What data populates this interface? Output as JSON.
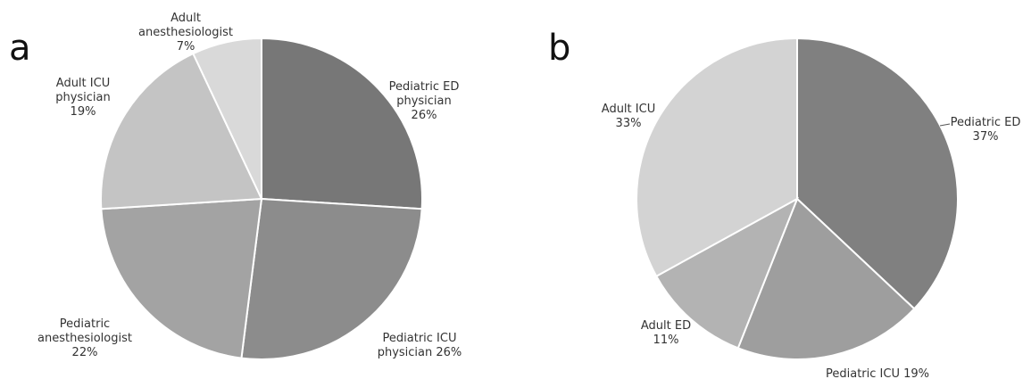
{
  "chart_data": [
    {
      "type": "pie",
      "panel_label": "a",
      "slices": [
        {
          "label_lines": [
            "Pediatric ED",
            "physician",
            "26%"
          ],
          "value": 26,
          "color": "#777777"
        },
        {
          "label_lines": [
            "Pediatric ICU",
            "physician 26%"
          ],
          "value": 26,
          "color": "#8c8c8c"
        },
        {
          "label_lines": [
            "Pediatric",
            "anesthesiologist",
            "22%"
          ],
          "value": 22,
          "color": "#a3a3a3"
        },
        {
          "label_lines": [
            "Adult ICU",
            "physician",
            "19%"
          ],
          "value": 19,
          "color": "#c4c4c4"
        },
        {
          "label_lines": [
            "Adult",
            "anesthesiologist",
            "7%"
          ],
          "value": 7,
          "color": "#d9d9d9"
        }
      ]
    },
    {
      "type": "pie",
      "panel_label": "b",
      "slices": [
        {
          "label_lines": [
            "Pediatric ED",
            "37%"
          ],
          "value": 37,
          "color": "#808080"
        },
        {
          "label_lines": [
            "Pediatric ICU 19%"
          ],
          "value": 19,
          "color": "#9e9e9e"
        },
        {
          "label_lines": [
            "Adult ED",
            "11%"
          ],
          "value": 11,
          "color": "#b3b3b3"
        },
        {
          "label_lines": [
            "Adult ICU",
            "33%"
          ],
          "value": 33,
          "color": "#d3d3d3"
        }
      ]
    }
  ]
}
